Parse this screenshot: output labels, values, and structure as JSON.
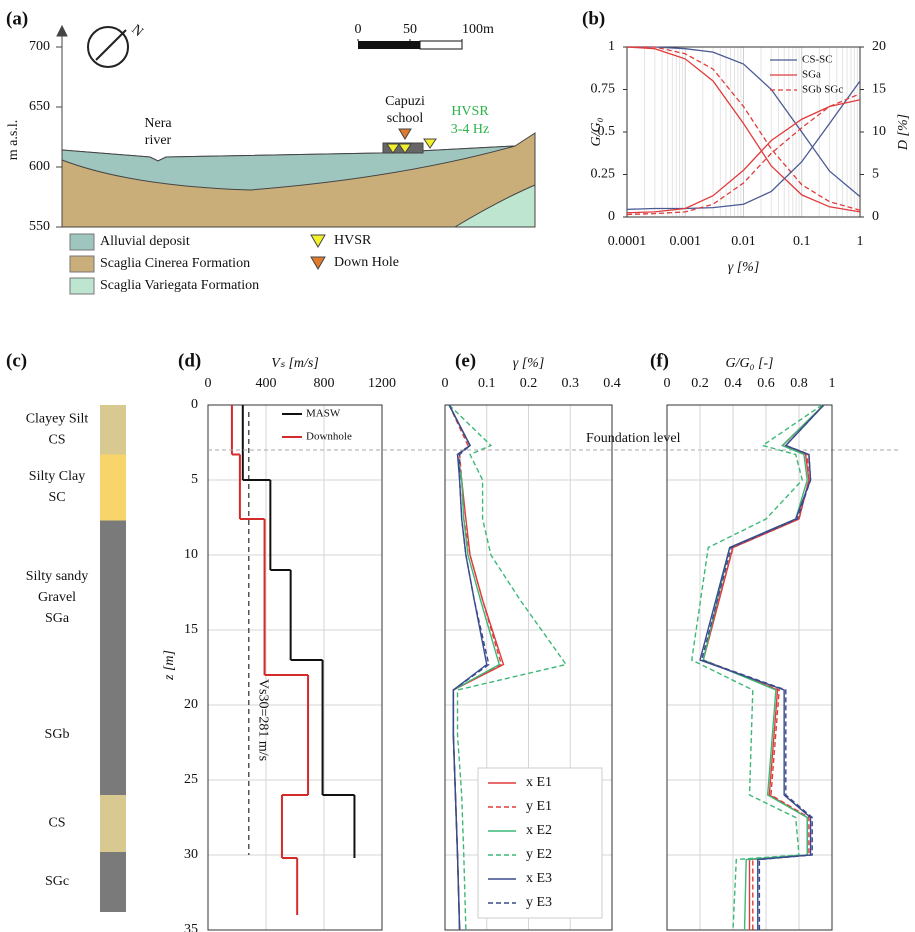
{
  "chart_data": [
    {
      "type": "section",
      "panel": "(a)",
      "ylabel": "m a.s.l.",
      "ylim": [
        550,
        700
      ],
      "yticks": [
        550,
        600,
        650,
        700
      ],
      "north": "N",
      "river": [
        "Nera",
        "river"
      ],
      "school": [
        "Capuzi",
        "school"
      ],
      "hvsr_note": [
        "HVSR",
        "3-4 Hz"
      ],
      "scale_bar": {
        "ticks": [
          0,
          50,
          {
            "value": 100,
            "label": "100m"
          }
        ]
      },
      "legend": [
        {
          "label": "Alluvial deposit",
          "color": "#9fc5bf",
          "symbol": "rect"
        },
        {
          "label": "Scaglia Cinerea Formation",
          "color": "#c9ae79",
          "symbol": "rect"
        },
        {
          "label": "Scaglia Variegata Formation",
          "color": "#bde5d0",
          "symbol": "rect"
        },
        {
          "label": "HVSR",
          "color": "#f4f12a",
          "symbol": "triangle"
        },
        {
          "label": "Down Hole",
          "color": "#e07a2c",
          "symbol": "triangle"
        }
      ]
    },
    {
      "type": "curves",
      "panel": "(b)",
      "xlabel": "γ [%]",
      "ylabel": "G/G₀",
      "y2label": "D [%]",
      "xlog": true,
      "xlim": [
        0.0001,
        1
      ],
      "xticks": [
        0.0001,
        0.001,
        0.01,
        0.1,
        1
      ],
      "ylim": [
        0,
        1
      ],
      "yticks": [
        0,
        0.25,
        0.5,
        0.75,
        1
      ],
      "y2lim": [
        0,
        20
      ],
      "y2ticks": [
        0,
        5,
        10,
        15,
        20
      ],
      "grid": true,
      "x": [
        0.0001,
        0.0003,
        0.001,
        0.003,
        0.01,
        0.03,
        0.1,
        0.3,
        1
      ],
      "series": [
        {
          "name": "CS-SC",
          "color": "#4a5a95",
          "dash": false,
          "values": [
            1,
            1,
            0.99,
            0.97,
            0.9,
            0.75,
            0.5,
            0.27,
            0.12
          ]
        },
        {
          "name": "SGa",
          "color": "#e03c3c",
          "dash": false,
          "values": [
            1,
            0.99,
            0.93,
            0.8,
            0.55,
            0.3,
            0.13,
            0.06,
            0.03
          ]
        },
        {
          "name": "SGb SGc",
          "color": "#e03c3c",
          "dash": true,
          "values": [
            1,
            1,
            0.96,
            0.87,
            0.65,
            0.4,
            0.19,
            0.09,
            0.04
          ]
        },
        {
          "axis": "y2",
          "color": "#4a5a95",
          "dash": false,
          "values": [
            0.9,
            1,
            1,
            1.1,
            1.5,
            3,
            6.5,
            11,
            16
          ]
        },
        {
          "axis": "y2",
          "color": "#e03c3c",
          "dash": false,
          "values": [
            0.5,
            0.6,
            1,
            2.5,
            5.5,
            9,
            11.5,
            13,
            13.8
          ]
        },
        {
          "axis": "y2",
          "color": "#e03c3c",
          "dash": true,
          "values": [
            0.3,
            0.4,
            0.6,
            1.5,
            4,
            7.5,
            10.5,
            13,
            14.5
          ]
        }
      ]
    },
    {
      "type": "column",
      "panel": "(c)",
      "layers": [
        {
          "lines": [
            "Clayey Silt",
            "CS"
          ],
          "top": 0,
          "bottom": 3.3,
          "color": "#d7c98f"
        },
        {
          "lines": [
            "Silty Clay",
            "SC"
          ],
          "top": 3.3,
          "bottom": 7.7,
          "color": "#f7d56a"
        },
        {
          "lines": [
            "Silty sandy",
            "Gravel",
            "SGa"
          ],
          "top": 7.7,
          "bottom": 18,
          "color": "#7a7a7a"
        },
        {
          "lines": [
            "SGb"
          ],
          "top": 18,
          "bottom": 26,
          "color": "#7a7a7a"
        },
        {
          "lines": [
            "CS"
          ],
          "top": 26,
          "bottom": 29.8,
          "color": "#d7c98f"
        },
        {
          "lines": [
            "SGc"
          ],
          "top": 29.8,
          "bottom": 33.8,
          "color": "#7a7a7a"
        }
      ]
    },
    {
      "type": "steps",
      "panel": "(d)",
      "xlabel": "Vₛ [m/s]",
      "zlabel": "z [m]",
      "xlim": [
        0,
        1200
      ],
      "xticks": [
        0,
        400,
        800,
        1200
      ],
      "zlim": [
        0,
        35
      ],
      "zticks": [
        0,
        5,
        10,
        15,
        20,
        25,
        30,
        35
      ],
      "grid": true,
      "vs30": {
        "value": 281,
        "label": "Vs30=281 m/s"
      },
      "series": [
        {
          "name": "MASW",
          "color": "#111111",
          "z": [
            0,
            5,
            11,
            17,
            26,
            30.2
          ],
          "values": [
            240,
            430,
            570,
            790,
            1010
          ]
        },
        {
          "name": "Downhole",
          "color": "#d42a2a",
          "z": [
            0,
            3.3,
            7.6,
            18,
            26,
            30.2,
            34
          ],
          "values": [
            165,
            220,
            390,
            690,
            510,
            615
          ]
        }
      ]
    },
    {
      "type": "profile",
      "panel": "(e)",
      "xlabel": "γ [%]",
      "xlim": [
        0,
        0.4
      ],
      "xticks": [
        0,
        0.1,
        0.2,
        0.3,
        0.4
      ],
      "grid": true,
      "annotation": {
        "text": "Foundation level",
        "z": 3
      },
      "z": [
        0,
        2.7,
        3.3,
        5,
        7.6,
        10,
        13,
        17.3,
        19,
        22,
        26,
        30,
        35
      ],
      "series": [
        {
          "name": "x E1",
          "color": "#e03c3c",
          "dash": false,
          "values": [
            0.01,
            0.06,
            0.03,
            0.04,
            0.05,
            0.06,
            0.09,
            0.14,
            0.02,
            0.02,
            0.025,
            0.03,
            0.035
          ]
        },
        {
          "name": "y E1",
          "color": "#e03c3c",
          "dash": true,
          "values": [
            0.01,
            0.055,
            0.035,
            0.04,
            0.045,
            0.06,
            0.09,
            0.135,
            0.02,
            0.02,
            0.025,
            0.03,
            0.035
          ]
        },
        {
          "name": "x E2",
          "color": "#3cb878",
          "dash": false,
          "values": [
            0.01,
            0.06,
            0.03,
            0.04,
            0.045,
            0.055,
            0.085,
            0.13,
            0.02,
            0.02,
            0.025,
            0.03,
            0.035
          ]
        },
        {
          "name": "y E2",
          "color": "#3cb878",
          "dash": true,
          "values": [
            0.01,
            0.11,
            0.06,
            0.09,
            0.09,
            0.11,
            0.18,
            0.29,
            0.03,
            0.03,
            0.04,
            0.045,
            0.05
          ]
        },
        {
          "name": "x E3",
          "color": "#3a4a8c",
          "dash": false,
          "values": [
            0.01,
            0.06,
            0.03,
            0.035,
            0.04,
            0.05,
            0.07,
            0.1,
            0.02,
            0.02,
            0.025,
            0.03,
            0.035
          ]
        },
        {
          "name": "y E3",
          "color": "#3a4a8c",
          "dash": true,
          "values": [
            0.01,
            0.06,
            0.035,
            0.035,
            0.04,
            0.05,
            0.07,
            0.105,
            0.02,
            0.02,
            0.025,
            0.03,
            0.035
          ]
        }
      ]
    },
    {
      "type": "profile",
      "panel": "(f)",
      "xlabel": "G/G₀ [-]",
      "xlim": [
        0,
        1
      ],
      "xticks": [
        0,
        0.2,
        0.4,
        0.6,
        0.8,
        1
      ],
      "grid": true,
      "z": [
        0,
        2.7,
        3.3,
        5,
        7.6,
        9.5,
        17,
        19,
        26,
        27.5,
        30,
        30.3,
        35
      ],
      "series": [
        {
          "name": "x E1",
          "color": "#e03c3c",
          "dash": false,
          "values": [
            0.95,
            0.7,
            0.84,
            0.86,
            0.8,
            0.4,
            0.22,
            0.67,
            0.62,
            0.85,
            0.85,
            0.5,
            0.5
          ]
        },
        {
          "name": "y E1",
          "color": "#e03c3c",
          "dash": true,
          "values": [
            0.95,
            0.7,
            0.85,
            0.86,
            0.8,
            0.4,
            0.22,
            0.68,
            0.63,
            0.86,
            0.86,
            0.52,
            0.52
          ]
        },
        {
          "name": "x E2",
          "color": "#3cb878",
          "dash": false,
          "values": [
            0.95,
            0.7,
            0.83,
            0.85,
            0.78,
            0.38,
            0.22,
            0.66,
            0.61,
            0.85,
            0.85,
            0.48,
            0.47
          ]
        },
        {
          "name": "y E2",
          "color": "#3cb878",
          "dash": true,
          "values": [
            0.94,
            0.58,
            0.78,
            0.82,
            0.6,
            0.25,
            0.15,
            0.52,
            0.5,
            0.78,
            0.8,
            0.42,
            0.4
          ]
        },
        {
          "name": "x E3",
          "color": "#3a4a8c",
          "dash": false,
          "values": [
            0.95,
            0.72,
            0.86,
            0.87,
            0.78,
            0.38,
            0.2,
            0.71,
            0.71,
            0.87,
            0.87,
            0.55,
            0.55
          ]
        },
        {
          "name": "y E3",
          "color": "#3a4a8c",
          "dash": true,
          "values": [
            0.95,
            0.72,
            0.86,
            0.87,
            0.79,
            0.39,
            0.21,
            0.72,
            0.72,
            0.88,
            0.88,
            0.56,
            0.56
          ]
        }
      ]
    }
  ]
}
